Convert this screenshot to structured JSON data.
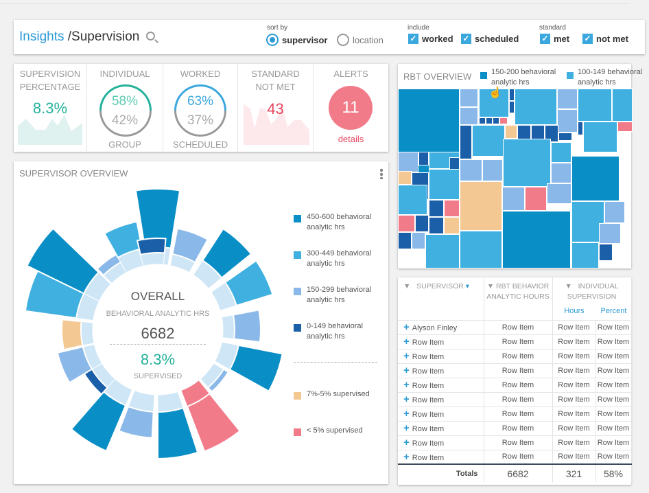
{
  "header": {
    "crumb_root": "Insights",
    "crumb_page": "/Supervision",
    "sort_by": {
      "label": "sort by",
      "options": [
        {
          "label": "supervisor",
          "selected": true
        },
        {
          "label": "location",
          "selected": false
        }
      ]
    },
    "include": {
      "label": "include",
      "options": [
        {
          "label": "worked",
          "checked": true
        },
        {
          "label": "scheduled",
          "checked": true
        }
      ]
    },
    "standard": {
      "label": "standard",
      "options": [
        {
          "label": "met",
          "checked": true
        },
        {
          "label": "not met",
          "checked": true
        }
      ]
    }
  },
  "kpis": {
    "supervision": {
      "title1": "SUPERVISION",
      "title2": "PERCENTAGE",
      "value": "8.3%"
    },
    "individual": {
      "title": "INDIVIDUAL",
      "top": "58%",
      "bottom": "42%",
      "footer": "GROUP",
      "fraction": 0.58
    },
    "worked": {
      "title": "WORKED",
      "top": "63%",
      "bottom": "37%",
      "footer": "SCHEDULED",
      "fraction": 0.63
    },
    "standard": {
      "title1": "STANDARD",
      "title2": "NOT MET",
      "value": "43"
    },
    "alerts": {
      "title": "ALERTS",
      "value": "11",
      "link": "details"
    }
  },
  "rbt": {
    "title": "RBT OVERVIEW",
    "legend": [
      {
        "label": "150-200 behavioral analytic hrs",
        "color": "#0a8ec6"
      },
      {
        "label": "100-149 behavioral analytic hrs",
        "color": "#3fb0e0"
      }
    ]
  },
  "supervisor_overview": {
    "title": "SUPERVISOR OVERVIEW",
    "center_title": "OVERALL",
    "center_sub": "BEHAVIORAL ANALYTIC HRS",
    "center_value": "6682",
    "center_pct": "8.3%",
    "center_pct_label": "SUPERVISED",
    "legend": [
      {
        "label": "450-600 behavioral analytic hrs",
        "color": "#0a8ec6"
      },
      {
        "label": "300-449 behavioral analytic hrs",
        "color": "#3fb0e0"
      },
      {
        "label": "150-299 behavioral analytic hrs",
        "color": "#8ab8e8"
      },
      {
        "label": "0-149 behavioral analytic hrs",
        "color": "#1a5fa8"
      },
      {
        "label": "7%-5% supervised",
        "color": "#f3c892"
      },
      {
        "label": "< 5% supervised",
        "color": "#f27b8a"
      }
    ]
  },
  "table": {
    "headers": {
      "supervisor": "SUPERVISOR",
      "rbt": "RBT BEHAVIOR ANALYTIC HOURS",
      "individual": "INDIVIDUAL SUPERVISION",
      "hours": "Hours",
      "percent": "Percent"
    },
    "rows": [
      [
        "Alyson Finley",
        "Row Item",
        "Row Item",
        "Row Item"
      ],
      [
        "Row Item",
        "Row Item",
        "Row Item",
        "Row Item"
      ],
      [
        "Row Item",
        "Row Item",
        "Row Item",
        "Row Item"
      ],
      [
        "Row Item",
        "Row Item",
        "Row Item",
        "Row Item"
      ],
      [
        "Row Item",
        "Row Item",
        "Row Item",
        "Row Item"
      ],
      [
        "Row Item",
        "Row Item",
        "Row Item",
        "Row Item"
      ],
      [
        "Row Item",
        "Row Item",
        "Row Item",
        "Row Item"
      ],
      [
        "Row Item",
        "Row Item",
        "Row Item",
        "Row Item"
      ],
      [
        "Row Item",
        "Row Item",
        "Row Item",
        "Row Item"
      ],
      [
        "Row Item",
        "Row Item",
        "Row Item",
        "Row Item"
      ]
    ],
    "totals": {
      "label": "Totals",
      "rbt": "6682",
      "hours": "321",
      "percent": "58%"
    }
  }
}
